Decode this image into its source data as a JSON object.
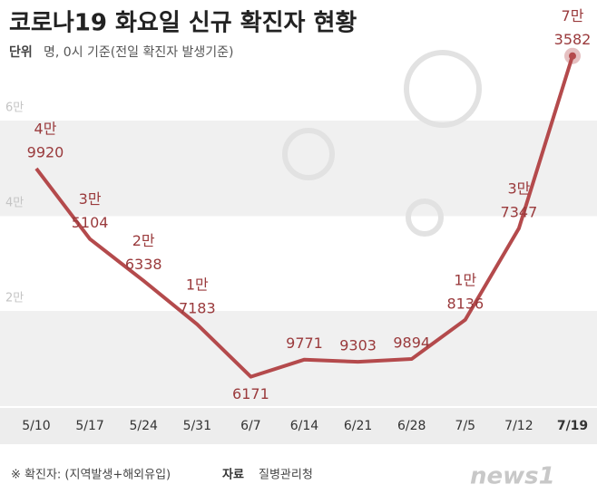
{
  "chart_data": {
    "type": "line",
    "title": "코로나19 화요일 신규 확진자 현황",
    "unit_label": "단위",
    "unit": "명, 0시 기준(전일 확진자 발생기준)",
    "categories": [
      "5/10",
      "5/17",
      "5/24",
      "5/31",
      "6/7",
      "6/14",
      "6/21",
      "6/28",
      "7/5",
      "7/12",
      "7/19"
    ],
    "series": [
      {
        "name": "신규 확진자",
        "color": "#b44a4c",
        "values": [
          49920,
          35104,
          26338,
          17183,
          6171,
          9771,
          9303,
          9894,
          18136,
          37347,
          73582
        ]
      }
    ],
    "value_labels": [
      [
        "4만",
        "9920"
      ],
      [
        "3만",
        "5104"
      ],
      [
        "2만",
        "6338"
      ],
      [
        "1만",
        "7183"
      ],
      [
        "6171"
      ],
      [
        "9771"
      ],
      [
        "9303"
      ],
      [
        "9894"
      ],
      [
        "1만",
        "8136"
      ],
      [
        "3만",
        "7347"
      ],
      [
        "7만",
        "3582"
      ]
    ],
    "ylim": [
      0,
      80000
    ],
    "yticks": [
      {
        "value": 20000,
        "label": "2만"
      },
      {
        "value": 40000,
        "label": "4만"
      },
      {
        "value": 60000,
        "label": "6만"
      }
    ],
    "note": "※ 확진자: (지역발생+해외유입)",
    "source_label": "자료",
    "source": "질병관리청",
    "logo": "news1"
  }
}
